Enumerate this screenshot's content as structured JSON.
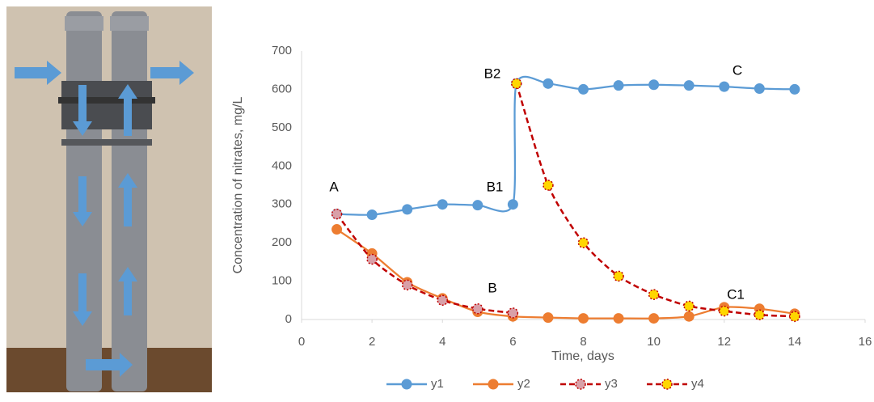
{
  "chart_data": {
    "type": "line",
    "ylabel": "Concentration of nitrates, mg/L",
    "xlabel": "Time, days",
    "xlim": [
      0,
      16
    ],
    "xticks": [
      0,
      2,
      4,
      6,
      8,
      10,
      12,
      14,
      16
    ],
    "ylim": [
      0,
      700
    ],
    "yticks": [
      0,
      100,
      200,
      300,
      400,
      500,
      600,
      700
    ],
    "grid": false,
    "legend": "bottom",
    "series": [
      {
        "name": "y1",
        "color": "#5b9bd5",
        "marker_fill": "#5b9bd5",
        "dashed": false,
        "x": [
          1,
          2,
          3,
          4,
          5,
          6,
          6.1,
          7,
          8,
          9,
          10,
          11,
          12,
          13,
          14
        ],
        "values": [
          275,
          273,
          287,
          300,
          298,
          300,
          615,
          615,
          600,
          610,
          612,
          610,
          607,
          602,
          600
        ]
      },
      {
        "name": "y2",
        "color": "#ed7d31",
        "marker_fill": "#ed7d31",
        "dashed": false,
        "x": [
          1,
          2,
          3,
          4,
          5,
          6,
          7,
          8,
          9,
          10,
          11,
          12,
          13,
          14
        ],
        "values": [
          235,
          172,
          97,
          55,
          20,
          8,
          5,
          3,
          3,
          3,
          8,
          32,
          28,
          15
        ]
      },
      {
        "name": "y3",
        "color": "#c00000",
        "marker_fill": "#d9a0a8",
        "dashed": true,
        "x": [
          1,
          2,
          3,
          4,
          5,
          6
        ],
        "values": [
          275,
          157,
          90,
          50,
          28,
          17
        ]
      },
      {
        "name": "y4",
        "color": "#c00000",
        "marker_fill": "#ffd700",
        "dashed": true,
        "x": [
          6.1,
          7,
          8,
          9,
          10,
          11,
          12,
          13,
          14
        ],
        "values": [
          615,
          350,
          200,
          113,
          65,
          35,
          22,
          12,
          8
        ]
      }
    ],
    "annotations": [
      "A",
      "B1",
      "B2",
      "B",
      "C",
      "C1"
    ]
  }
}
